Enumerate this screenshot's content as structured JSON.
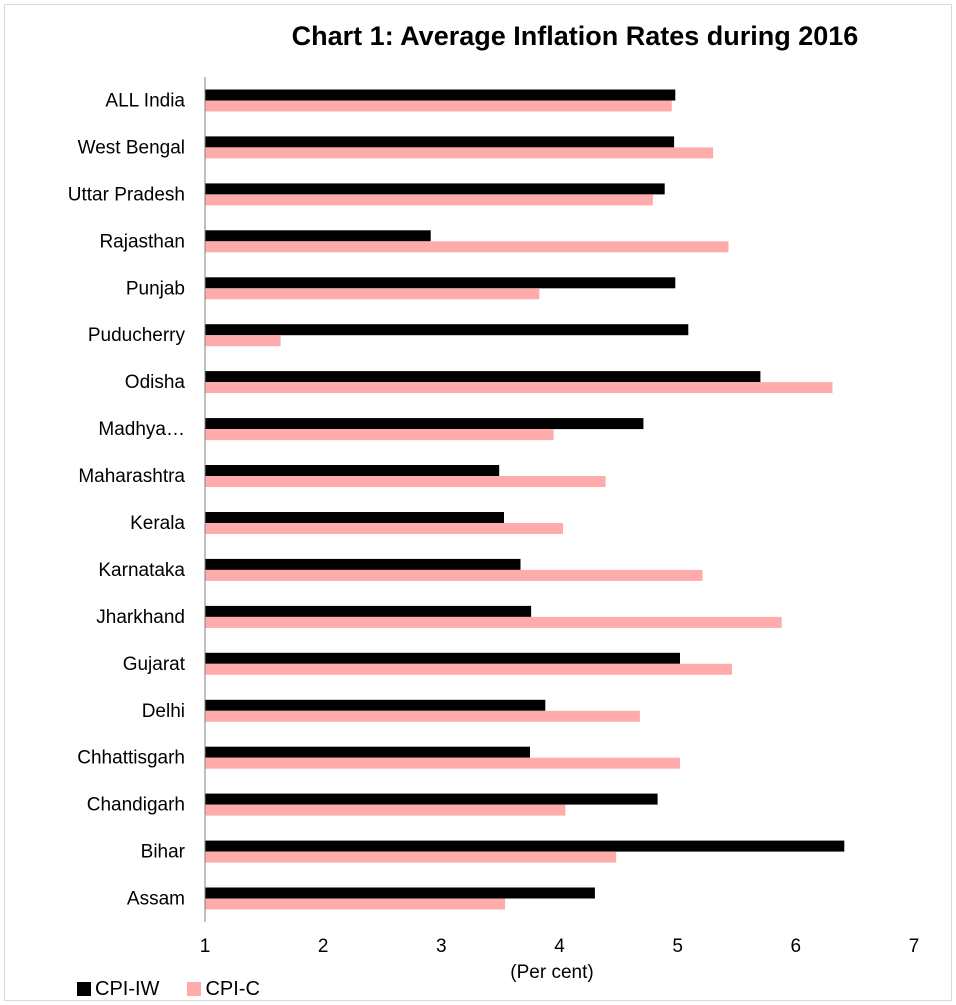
{
  "chart_data": {
    "type": "bar",
    "orientation": "horizontal",
    "title": "Chart 1: Average Inflation Rates during 2016",
    "xlabel": "(Per cent)",
    "ylabel": "",
    "xlim": [
      1,
      7
    ],
    "x_ticks": [
      "1",
      "2",
      "3",
      "4",
      "5",
      "6",
      "7"
    ],
    "grid": false,
    "legend_position": "bottom-left",
    "categories": [
      "ALL India",
      "West Bengal",
      "Uttar Pradesh",
      "Rajasthan",
      "Punjab",
      "Puducherry",
      "Odisha",
      "Madhya…",
      "Maharashtra",
      "Kerala",
      "Karnataka",
      "Jharkhand",
      "Gujarat",
      "Delhi",
      "Chhattisgarh",
      "Chandigarh",
      "Bihar",
      "Assam"
    ],
    "series": [
      {
        "name": "CPI-IW",
        "color": "#000000",
        "values": [
          4.98,
          4.97,
          4.89,
          2.91,
          4.98,
          5.09,
          5.7,
          4.71,
          3.49,
          3.53,
          3.67,
          3.76,
          5.02,
          3.88,
          3.75,
          4.83,
          6.41,
          4.3
        ]
      },
      {
        "name": "CPI-C",
        "color": "#ffabab",
        "values": [
          4.95,
          5.3,
          4.79,
          5.43,
          3.83,
          1.64,
          6.31,
          3.95,
          4.39,
          4.03,
          5.21,
          5.88,
          5.46,
          4.68,
          5.02,
          4.05,
          4.48,
          3.54
        ]
      }
    ]
  }
}
